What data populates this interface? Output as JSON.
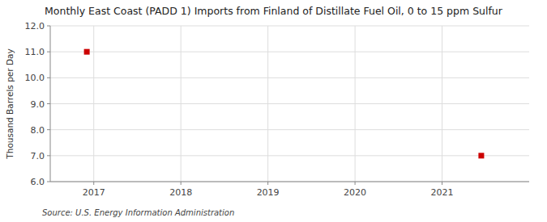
{
  "chart_data": {
    "type": "scatter",
    "title": "Monthly East Coast (PADD 1) Imports from Finland of Distillate Fuel Oil, 0 to 15 ppm Sulfur",
    "y_label": "Thousand Barrels per Day",
    "source": "Source: U.S. Energy Information Administration",
    "x": [
      2016.92,
      2021.45
    ],
    "values": [
      11.0,
      7.0
    ],
    "color": "#cc0000",
    "marker": "square",
    "xlim": [
      2016.5,
      2022.0
    ],
    "xticks": [
      2017,
      2018,
      2019,
      2020,
      2021
    ],
    "ylim": [
      6.0,
      12.0
    ],
    "yticks": [
      {
        "value": 6.0,
        "label": "6.0"
      },
      {
        "value": 7.0,
        "label": "7.0"
      },
      {
        "value": 8.0,
        "label": "8.0"
      },
      {
        "value": 9.0,
        "label": "9.0"
      },
      {
        "value": 10.0,
        "label": "10.0"
      },
      {
        "value": 11.0,
        "label": "11.0"
      },
      {
        "value": 12.0,
        "label": "12.0"
      }
    ],
    "grid": true
  }
}
